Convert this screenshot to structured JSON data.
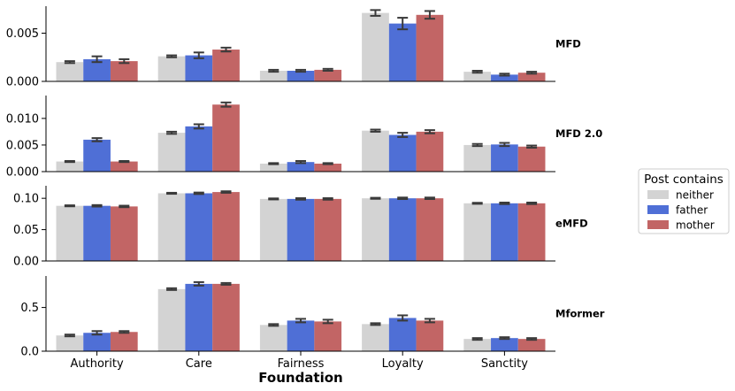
{
  "chart_data": {
    "type": "bar",
    "xlabel": "Foundation",
    "categories": [
      "Authority",
      "Care",
      "Fairness",
      "Loyalty",
      "Sanctity"
    ],
    "legend": {
      "title": "Post contains",
      "placement": "right",
      "entries": [
        "neither",
        "father",
        "mother"
      ]
    },
    "colors": {
      "neither": "#d3d3d3",
      "father": "#4f6fd6",
      "mother": "#c26565",
      "errorbar": "#3a3a3a"
    },
    "panels": [
      {
        "label": "MFD",
        "ylim": [
          0,
          0.0078
        ],
        "yticks": [
          0.0,
          0.005
        ],
        "ytick_labels": [
          "0.000",
          "0.005"
        ],
        "series": [
          {
            "name": "neither",
            "values": [
              0.002,
              0.0026,
              0.0011,
              0.0071,
              0.001
            ],
            "err": [
              0.0001,
              0.0001,
              0.0001,
              0.0003,
              0.0001
            ]
          },
          {
            "name": "father",
            "values": [
              0.0023,
              0.0027,
              0.0011,
              0.006,
              0.0007
            ],
            "err": [
              0.0003,
              0.0003,
              0.0001,
              0.0006,
              0.0001
            ]
          },
          {
            "name": "mother",
            "values": [
              0.0021,
              0.0033,
              0.0012,
              0.0069,
              0.0009
            ],
            "err": [
              0.0002,
              0.0002,
              0.0001,
              0.0004,
              0.0001
            ]
          }
        ]
      },
      {
        "label": "MFD 2.0",
        "ylim": [
          0,
          0.0143
        ],
        "yticks": [
          0.0,
          0.005,
          0.01
        ],
        "ytick_labels": [
          "0.000",
          "0.005",
          "0.010"
        ],
        "series": [
          {
            "name": "neither",
            "values": [
              0.0019,
              0.0073,
              0.0015,
              0.0077,
              0.005
            ],
            "err": [
              0.0001,
              0.0002,
              0.0001,
              0.0002,
              0.0002
            ]
          },
          {
            "name": "father",
            "values": [
              0.006,
              0.0085,
              0.0018,
              0.0069,
              0.0051
            ],
            "err": [
              0.0003,
              0.0004,
              0.0002,
              0.0004,
              0.0003
            ]
          },
          {
            "name": "mother",
            "values": [
              0.0019,
              0.0126,
              0.0015,
              0.0075,
              0.0047
            ],
            "err": [
              0.0001,
              0.0004,
              0.0001,
              0.0003,
              0.0002
            ]
          }
        ]
      },
      {
        "label": "eMFD",
        "ylim": [
          0,
          0.12
        ],
        "yticks": [
          0.0,
          0.05,
          0.1
        ],
        "ytick_labels": [
          "0.00",
          "0.05",
          "0.10"
        ],
        "series": [
          {
            "name": "neither",
            "values": [
              0.088,
              0.108,
              0.099,
              0.1,
              0.092
            ],
            "err": [
              0.0008,
              0.0008,
              0.0008,
              0.0008,
              0.0008
            ]
          },
          {
            "name": "father",
            "values": [
              0.088,
              0.108,
              0.099,
              0.1,
              0.092
            ],
            "err": [
              0.0012,
              0.0012,
              0.0012,
              0.0012,
              0.0012
            ]
          },
          {
            "name": "mother",
            "values": [
              0.087,
              0.11,
              0.099,
              0.1,
              0.092
            ],
            "err": [
              0.0012,
              0.0012,
              0.0012,
              0.0012,
              0.0012
            ]
          }
        ]
      },
      {
        "label": "Mformer",
        "ylim": [
          0,
          0.86
        ],
        "yticks": [
          0.0,
          0.5
        ],
        "ytick_labels": [
          "0.0",
          "0.5"
        ],
        "series": [
          {
            "name": "neither",
            "values": [
              0.18,
              0.71,
              0.3,
              0.31,
              0.14
            ],
            "err": [
              0.01,
              0.01,
              0.01,
              0.01,
              0.01
            ]
          },
          {
            "name": "father",
            "values": [
              0.21,
              0.77,
              0.35,
              0.38,
              0.15
            ],
            "err": [
              0.02,
              0.02,
              0.02,
              0.03,
              0.01
            ]
          },
          {
            "name": "mother",
            "values": [
              0.22,
              0.77,
              0.34,
              0.35,
              0.14
            ],
            "err": [
              0.01,
              0.01,
              0.02,
              0.02,
              0.01
            ]
          }
        ]
      }
    ]
  }
}
